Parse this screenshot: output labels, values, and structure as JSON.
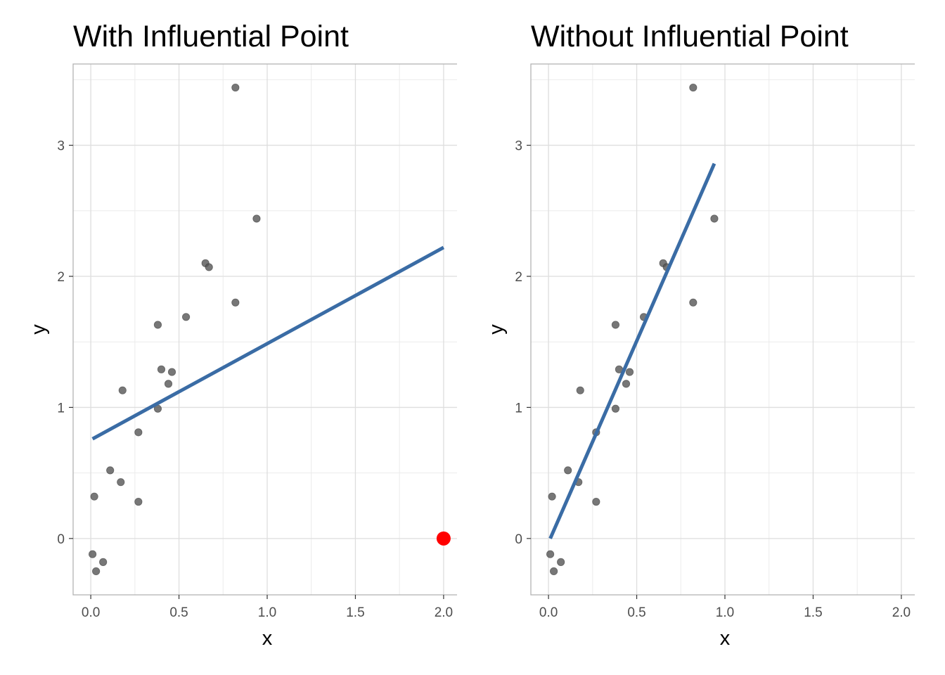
{
  "chart_data": [
    {
      "type": "scatter",
      "title": "With Influential Point",
      "xlabel": "x",
      "ylabel": "y",
      "xlim": [
        -0.1,
        2.1
      ],
      "ylim": [
        -0.43,
        3.62
      ],
      "x_ticks": [
        0.0,
        0.5,
        1.0,
        1.5,
        2.0
      ],
      "x_tick_labels": [
        "0.0",
        "0.5",
        "1.0",
        "1.5",
        "2.0"
      ],
      "y_ticks": [
        0,
        1,
        2,
        3
      ],
      "y_tick_labels": [
        "0",
        "1",
        "2",
        "3"
      ],
      "grid": true,
      "points": [
        {
          "x": 0.01,
          "y": -0.12
        },
        {
          "x": 0.03,
          "y": -0.25
        },
        {
          "x": 0.07,
          "y": -0.18
        },
        {
          "x": 0.02,
          "y": 0.32
        },
        {
          "x": 0.11,
          "y": 0.52
        },
        {
          "x": 0.17,
          "y": 0.43
        },
        {
          "x": 0.18,
          "y": 1.13
        },
        {
          "x": 0.27,
          "y": 0.81
        },
        {
          "x": 0.27,
          "y": 0.28
        },
        {
          "x": 0.38,
          "y": 1.63
        },
        {
          "x": 0.38,
          "y": 0.99
        },
        {
          "x": 0.4,
          "y": 1.29
        },
        {
          "x": 0.44,
          "y": 1.18
        },
        {
          "x": 0.46,
          "y": 1.27
        },
        {
          "x": 0.54,
          "y": 1.69
        },
        {
          "x": 0.65,
          "y": 2.1
        },
        {
          "x": 0.67,
          "y": 2.07
        },
        {
          "x": 0.82,
          "y": 1.8
        },
        {
          "x": 0.94,
          "y": 2.44
        },
        {
          "x": 0.82,
          "y": 3.44
        }
      ],
      "point_color": "#555555",
      "highlight_points": [
        {
          "x": 2.0,
          "y": 0.0
        }
      ],
      "highlight_color": "#ff0000",
      "fit_line": {
        "x": [
          0.01,
          2.0
        ],
        "y": [
          0.76,
          2.22
        ]
      },
      "line_color": "#3a6ca5"
    },
    {
      "type": "scatter",
      "title": "Without Influential Point",
      "xlabel": "x",
      "ylabel": "y",
      "xlim": [
        -0.1,
        2.1
      ],
      "ylim": [
        -0.43,
        3.62
      ],
      "x_ticks": [
        0.0,
        0.5,
        1.0,
        1.5,
        2.0
      ],
      "x_tick_labels": [
        "0.0",
        "0.5",
        "1.0",
        "1.5",
        "2.0"
      ],
      "y_ticks": [
        0,
        1,
        2,
        3
      ],
      "y_tick_labels": [
        "0",
        "1",
        "2",
        "3"
      ],
      "grid": true,
      "points": [
        {
          "x": 0.01,
          "y": -0.12
        },
        {
          "x": 0.03,
          "y": -0.25
        },
        {
          "x": 0.07,
          "y": -0.18
        },
        {
          "x": 0.02,
          "y": 0.32
        },
        {
          "x": 0.11,
          "y": 0.52
        },
        {
          "x": 0.17,
          "y": 0.43
        },
        {
          "x": 0.18,
          "y": 1.13
        },
        {
          "x": 0.27,
          "y": 0.81
        },
        {
          "x": 0.27,
          "y": 0.28
        },
        {
          "x": 0.38,
          "y": 1.63
        },
        {
          "x": 0.38,
          "y": 0.99
        },
        {
          "x": 0.4,
          "y": 1.29
        },
        {
          "x": 0.44,
          "y": 1.18
        },
        {
          "x": 0.46,
          "y": 1.27
        },
        {
          "x": 0.54,
          "y": 1.69
        },
        {
          "x": 0.65,
          "y": 2.1
        },
        {
          "x": 0.67,
          "y": 2.07
        },
        {
          "x": 0.82,
          "y": 1.8
        },
        {
          "x": 0.94,
          "y": 2.44
        },
        {
          "x": 0.82,
          "y": 3.44
        }
      ],
      "point_color": "#555555",
      "highlight_points": [],
      "highlight_color": "#ff0000",
      "fit_line": {
        "x": [
          0.01,
          0.94
        ],
        "y": [
          0.0,
          2.86
        ]
      },
      "line_color": "#3a6ca5"
    }
  ]
}
